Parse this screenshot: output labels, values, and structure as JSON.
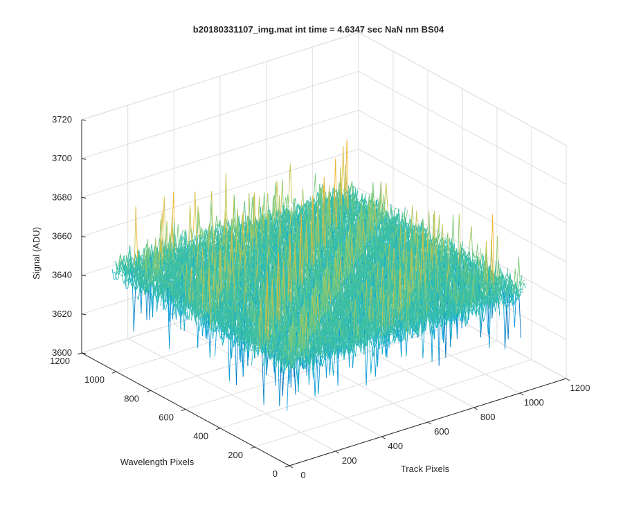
{
  "chart_data": {
    "type": "surface",
    "title": "b20180331107_img.mat int time = 4.6347 sec  NaN nm BS04",
    "xlabel": "Track Pixels",
    "ylabel": "Wavelength Pixels",
    "zlabel": "Signal (ADU)",
    "xlim": [
      0,
      1200
    ],
    "ylim": [
      0,
      1200
    ],
    "zlim": [
      3600,
      3720
    ],
    "x_ticks": [
      "0",
      "200",
      "400",
      "600",
      "800",
      "1000",
      "1200"
    ],
    "y_ticks": [
      "0",
      "200",
      "400",
      "600",
      "800",
      "1000",
      "1200"
    ],
    "z_ticks": [
      "3600",
      "3620",
      "3640",
      "3660",
      "3680",
      "3700",
      "3720"
    ],
    "data_extent": {
      "x": [
        0,
        1024
      ],
      "y": [
        0,
        1024
      ]
    },
    "signal_mean": 3652,
    "signal_noise_range": [
      3625,
      3705
    ],
    "grid": true,
    "colormap": "parula",
    "colors": [
      "#0072bd",
      "#0a9ad8",
      "#1fb5c6",
      "#3cbfa4",
      "#7cc97b",
      "#c5c24e",
      "#f2b52f"
    ]
  }
}
